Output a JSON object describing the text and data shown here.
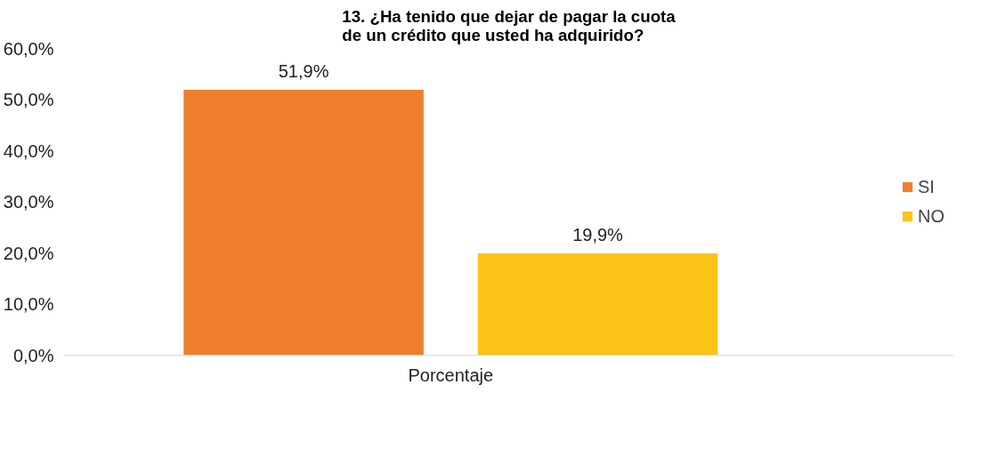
{
  "chart_data": {
    "type": "bar",
    "title": "13. ¿Ha tenido que dejar de pagar la cuota de un crédito que usted ha adquirido?",
    "categories": [
      "Porcentaje"
    ],
    "series": [
      {
        "name": "SI",
        "color": "#f07f2d",
        "values": [
          51.9
        ],
        "value_labels": [
          "51,9%"
        ]
      },
      {
        "name": "NO",
        "color": "#fcc419",
        "values": [
          19.9
        ],
        "value_labels": [
          "19,9%"
        ]
      }
    ],
    "ylim": [
      0,
      60
    ],
    "yticks": [
      {
        "value": 0,
        "label": "0,0%"
      },
      {
        "value": 10,
        "label": "10,0%"
      },
      {
        "value": 20,
        "label": "20,0%"
      },
      {
        "value": 30,
        "label": "30,0%"
      },
      {
        "value": 40,
        "label": "40,0%"
      },
      {
        "value": 50,
        "label": "50,0%"
      },
      {
        "value": 60,
        "label": "60,0%"
      }
    ],
    "grid": false,
    "legend": "right"
  }
}
